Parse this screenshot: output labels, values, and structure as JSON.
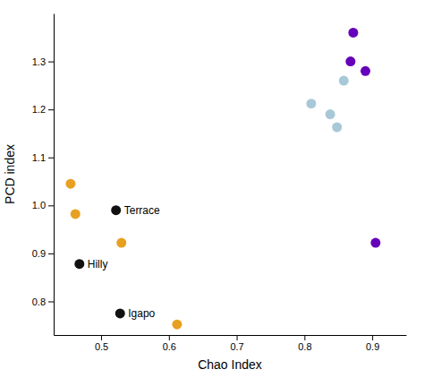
{
  "chart_data": {
    "type": "scatter",
    "xlabel": "Chao Index",
    "ylabel": "PCD index",
    "xlim": [
      0.43,
      0.95
    ],
    "ylim": [
      0.73,
      1.4
    ],
    "xticks": [
      0.5,
      0.6,
      0.7,
      0.8,
      0.9
    ],
    "yticks": [
      0.8,
      0.9,
      {
        "value": 1.0,
        "label": "1.0"
      },
      1.1,
      1.2,
      1.3
    ],
    "x": [
      0.455,
      0.462,
      0.53,
      0.612,
      0.468,
      0.522,
      0.528,
      0.81,
      0.838,
      0.848,
      0.858,
      0.868,
      0.872,
      0.89,
      0.905
    ],
    "values": [
      1.045,
      0.982,
      0.922,
      0.752,
      0.878,
      0.99,
      0.775,
      1.212,
      1.19,
      1.163,
      1.26,
      1.3,
      1.36,
      1.28,
      0.922
    ],
    "colors": [
      "#E8A020",
      "#E8A020",
      "#E8A020",
      "#E8A020",
      "#111111",
      "#111111",
      "#111111",
      "#A8C8D8",
      "#A8C8D8",
      "#A8C8D8",
      "#A8C8D8",
      "#6600BB",
      "#6600BB",
      "#6600BB",
      "#6600BB"
    ],
    "labels": [
      null,
      null,
      null,
      null,
      "Hilly",
      "Terrace",
      "Igapo",
      null,
      null,
      null,
      null,
      null,
      null,
      null,
      null
    ],
    "grid": false
  }
}
